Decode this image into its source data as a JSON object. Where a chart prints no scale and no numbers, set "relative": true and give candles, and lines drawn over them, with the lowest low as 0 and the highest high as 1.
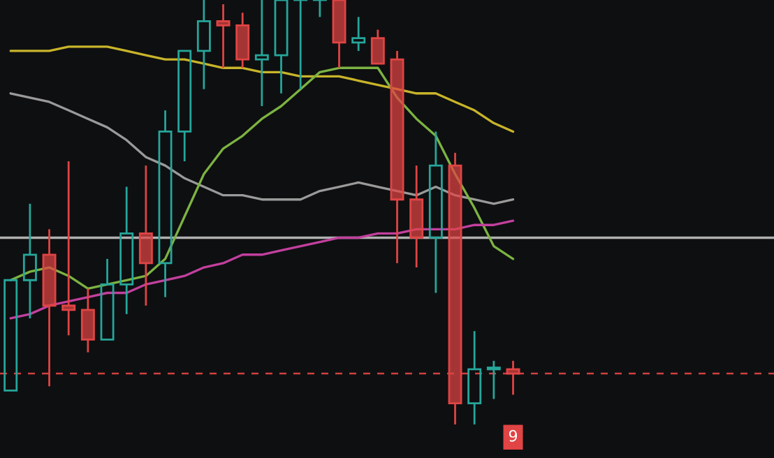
{
  "chart_data": {
    "type": "candlestick",
    "relative": true,
    "categories": [
      null,
      null,
      null,
      null,
      null,
      null,
      null,
      null,
      null,
      null,
      null,
      null,
      null,
      null,
      null,
      null,
      null,
      null,
      null,
      null,
      null,
      null,
      null,
      null,
      null,
      null,
      null
    ],
    "ohlc": [
      [
        0.08,
        0.34,
        0.08,
        0.34
      ],
      [
        0.34,
        0.52,
        0.25,
        0.4
      ],
      [
        0.4,
        0.46,
        0.09,
        0.28
      ],
      [
        0.28,
        0.62,
        0.21,
        0.27
      ],
      [
        0.27,
        0.32,
        0.17,
        0.2
      ],
      [
        0.2,
        0.39,
        0.2,
        0.33
      ],
      [
        0.33,
        0.56,
        0.26,
        0.45
      ],
      [
        0.45,
        0.61,
        0.28,
        0.38
      ],
      [
        0.38,
        0.74,
        0.3,
        0.69
      ],
      [
        0.69,
        0.88,
        0.62,
        0.88
      ],
      [
        0.88,
        1,
        0.79,
        0.95
      ],
      [
        0.95,
        0.99,
        0.84,
        0.94
      ],
      [
        0.94,
        0.97,
        0.84,
        0.86
      ],
      [
        0.86,
        1,
        0.75,
        0.87
      ],
      [
        0.87,
        1,
        0.78,
        1
      ],
      [
        1,
        1,
        0.79,
        1
      ],
      [
        1,
        1,
        0.96,
        1
      ],
      [
        1,
        1,
        0.84,
        0.9
      ],
      [
        0.9,
        0.96,
        0.88,
        0.91
      ],
      [
        0.91,
        0.93,
        0.85,
        0.85
      ],
      [
        0.86,
        0.88,
        0.38,
        0.53
      ],
      [
        0.53,
        0.61,
        0.37,
        0.44
      ],
      [
        0.44,
        0.69,
        0.31,
        0.61
      ],
      [
        0.61,
        0.64,
        0.0,
        0.05
      ],
      [
        0.05,
        0.22,
        0,
        0.13
      ],
      [
        0.13,
        0.15,
        0.06,
        0.13
      ],
      [
        0.13,
        0.15,
        0.07,
        0.12
      ]
    ],
    "series": [
      {
        "type": "line",
        "color": "#c8b42a",
        "values": [
          0.88,
          0.88,
          0.88,
          0.89,
          0.89,
          0.89,
          0.88,
          0.87,
          0.86,
          0.86,
          0.85,
          0.84,
          0.84,
          0.83,
          0.83,
          0.82,
          0.82,
          0.82,
          0.81,
          0.8,
          0.79,
          0.78,
          0.78,
          0.76,
          0.74,
          0.71,
          0.69
        ]
      },
      {
        "type": "line",
        "color": "#9a9a9a",
        "values": [
          0.78,
          0.77,
          0.76,
          0.74,
          0.72,
          0.7,
          0.67,
          0.63,
          0.61,
          0.58,
          0.56,
          0.54,
          0.54,
          0.53,
          0.53,
          0.53,
          0.55,
          0.56,
          0.57,
          0.56,
          0.55,
          0.54,
          0.56,
          0.54,
          0.53,
          0.52,
          0.53
        ]
      },
      {
        "type": "line",
        "color": "#7cb342",
        "values": [
          0.34,
          0.36,
          0.37,
          0.35,
          0.32,
          0.33,
          0.34,
          0.35,
          0.39,
          0.49,
          0.59,
          0.65,
          0.68,
          0.72,
          0.75,
          0.79,
          0.83,
          0.84,
          0.84,
          0.84,
          0.77,
          0.72,
          0.68,
          0.59,
          0.51,
          0.42,
          0.39
        ]
      },
      {
        "type": "line",
        "color": "#c2409e",
        "values": [
          0.25,
          0.26,
          0.28,
          0.29,
          0.3,
          0.31,
          0.31,
          0.33,
          0.34,
          0.35,
          0.37,
          0.38,
          0.4,
          0.4,
          0.41,
          0.42,
          0.43,
          0.44,
          0.44,
          0.45,
          0.45,
          0.46,
          0.46,
          0.46,
          0.47,
          0.47,
          0.48
        ]
      }
    ],
    "ref_lines": [
      {
        "axis": "y",
        "value": 0.44,
        "color": "#b0b0b0",
        "line_style": "solid"
      },
      {
        "axis": "y",
        "value": 0.12,
        "color": "#d04040",
        "line_style": "dashed"
      }
    ],
    "annotations": [
      "9"
    ],
    "legend": false
  }
}
